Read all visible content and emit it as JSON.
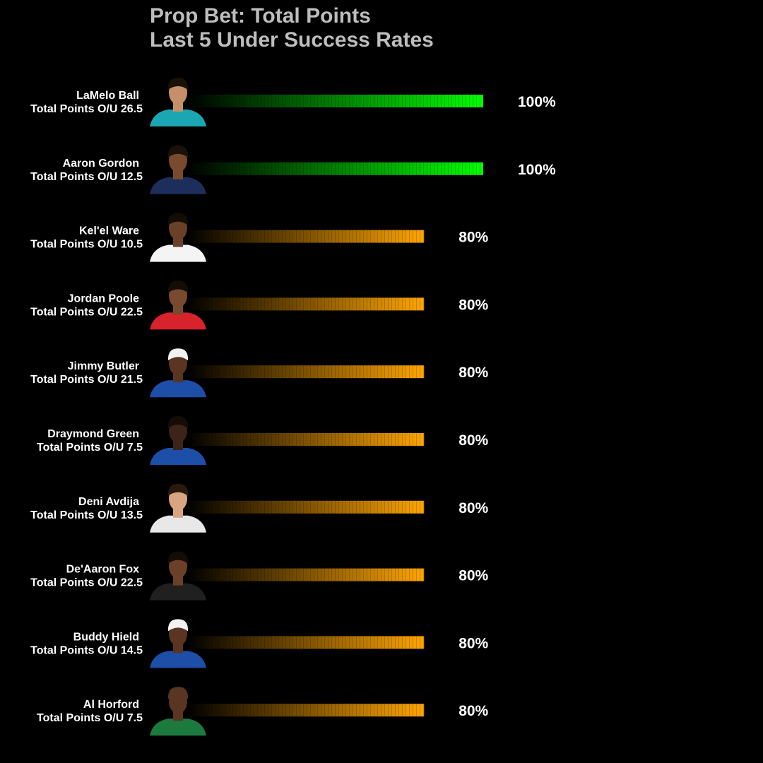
{
  "chart_data": {
    "type": "bar",
    "orientation": "horizontal",
    "title_lines": [
      "Prop Bet: Total Points",
      "Last 5 Under Success Rates"
    ],
    "xlim": [
      0,
      100
    ],
    "value_unit": "%",
    "grid": false,
    "legend": "none",
    "rows": [
      {
        "player": "LaMelo Ball",
        "line": "Total Points O/U 26.5",
        "value": 100,
        "value_label": "100%"
      },
      {
        "player": "Aaron Gordon",
        "line": "Total Points O/U 12.5",
        "value": 100,
        "value_label": "100%"
      },
      {
        "player": "Kel'el Ware",
        "line": "Total Points O/U 10.5",
        "value": 80,
        "value_label": "80%"
      },
      {
        "player": "Jordan Poole",
        "line": "Total Points O/U 22.5",
        "value": 80,
        "value_label": "80%"
      },
      {
        "player": "Jimmy Butler",
        "line": "Total Points O/U 21.5",
        "value": 80,
        "value_label": "80%"
      },
      {
        "player": "Draymond Green",
        "line": "Total Points O/U 7.5",
        "value": 80,
        "value_label": "80%"
      },
      {
        "player": "Deni Avdija",
        "line": "Total Points O/U 13.5",
        "value": 80,
        "value_label": "80%"
      },
      {
        "player": "De'Aaron Fox",
        "line": "Total Points O/U 22.5",
        "value": 80,
        "value_label": "80%"
      },
      {
        "player": "Buddy Hield",
        "line": "Total Points O/U 14.5",
        "value": 80,
        "value_label": "80%"
      },
      {
        "player": "Al Horford",
        "line": "Total Points O/U 7.5",
        "value": 80,
        "value_label": "80%"
      }
    ],
    "colors": {
      "full_bar": "#00ff00",
      "partial_bar": "#ffa500",
      "title": "#bdbdbd",
      "text": "#ffffff",
      "background": "#000000"
    },
    "headshots": [
      {
        "icon": "player-headshot-icon",
        "jersey": "#1aa7b3",
        "skin": "#c58f6a",
        "hair": "#1a1108"
      },
      {
        "icon": "player-headshot-icon",
        "jersey": "#1d2d5c",
        "skin": "#7a4a2e",
        "hair": "#1a1108"
      },
      {
        "icon": "player-headshot-icon",
        "jersey": "#f4f4f4",
        "skin": "#6b4028",
        "hair": "#140c06"
      },
      {
        "icon": "player-headshot-icon",
        "jersey": "#d8222c",
        "skin": "#7a4a2e",
        "hair": "#140c06"
      },
      {
        "icon": "player-headshot-icon",
        "jersey": "#1d4fa8",
        "skin": "#5a3522",
        "hair": "#f2f2f2"
      },
      {
        "icon": "player-headshot-icon",
        "jersey": "#1d4fa8",
        "skin": "#3d2418",
        "hair": "#140c06"
      },
      {
        "icon": "player-headshot-icon",
        "jersey": "#e8e8e8",
        "skin": "#d8a581",
        "hair": "#2a1a0c"
      },
      {
        "icon": "player-headshot-icon",
        "jersey": "#202020",
        "skin": "#6b4028",
        "hair": "#140c06"
      },
      {
        "icon": "player-headshot-icon",
        "jersey": "#1d4fa8",
        "skin": "#5a3522",
        "hair": "#f2f2f2"
      },
      {
        "icon": "player-headshot-icon",
        "jersey": "#1d7a3e",
        "skin": "#5a3522",
        "hair": "#5a3522"
      }
    ]
  }
}
